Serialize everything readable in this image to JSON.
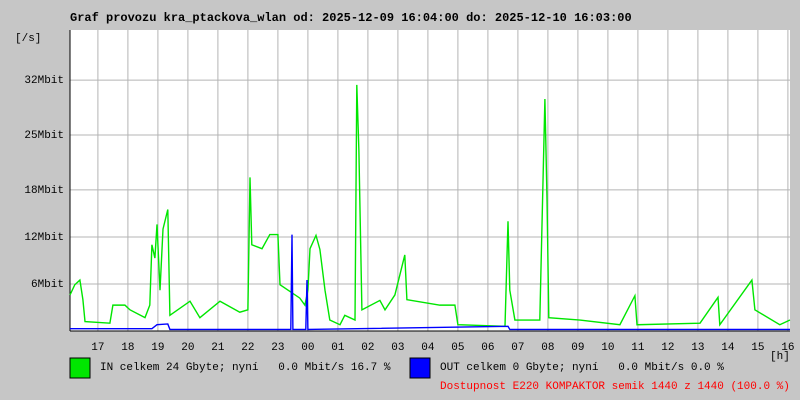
{
  "chart_data": {
    "type": "line",
    "title": "Graf provozu kra_ptackova_wlan od: 2025-12-09 16:04:00 do: 2025-12-10 16:03:00",
    "y_unit": "[/s]",
    "x_unit": "[h]",
    "xlim": [
      16.07,
      40.07
    ],
    "xticks": [
      17,
      18,
      19,
      20,
      21,
      22,
      23,
      {
        "value": 24,
        "label": "00"
      },
      {
        "value": 25,
        "label": "01"
      },
      {
        "value": 26,
        "label": "02"
      },
      {
        "value": 27,
        "label": "03"
      },
      {
        "value": 28,
        "label": "04"
      },
      {
        "value": 29,
        "label": "05"
      },
      {
        "value": 30,
        "label": "06"
      },
      {
        "value": 31,
        "label": "07"
      },
      {
        "value": 32,
        "label": "08"
      },
      {
        "value": 33,
        "label": "09"
      },
      {
        "value": 34,
        "label": "10"
      },
      {
        "value": 35,
        "label": "11"
      },
      {
        "value": 36,
        "label": "12"
      },
      {
        "value": 37,
        "label": "13"
      },
      {
        "value": 38,
        "label": "14"
      },
      {
        "value": 39,
        "label": "15"
      },
      {
        "value": 40,
        "label": "16"
      }
    ],
    "ylim": [
      0,
      38.4
    ],
    "yticks": [
      {
        "value": 6,
        "label": "6Mbit"
      },
      {
        "value": 12,
        "label": "12Mbit"
      },
      {
        "value": 18,
        "label": "18Mbit"
      },
      {
        "value": 25,
        "label": "25Mbit"
      },
      {
        "value": 32,
        "label": "32Mbit"
      }
    ],
    "grid": true,
    "series": [
      {
        "name": "IN celkem 24 Gbyte; nyní   0.0 Mbit/s 16.7 %",
        "color": "#00e600",
        "x": [
          16.07,
          16.23,
          16.4,
          16.5,
          16.57,
          17.4,
          17.5,
          17.9,
          18.07,
          18.57,
          18.73,
          18.8,
          18.9,
          18.97,
          19.07,
          19.17,
          19.33,
          19.4,
          20.07,
          20.4,
          21.07,
          21.73,
          22.0,
          22.07,
          22.13,
          22.47,
          22.73,
          23.0,
          23.07,
          23.73,
          23.9,
          24.0,
          24.07,
          24.27,
          24.4,
          24.57,
          24.73,
          25.07,
          25.23,
          25.57,
          25.63,
          25.7,
          25.8,
          26.4,
          26.57,
          26.9,
          27.23,
          27.3,
          28.4,
          28.9,
          29.0,
          30.57,
          30.67,
          30.73,
          30.9,
          31.73,
          31.9,
          31.97,
          32.03,
          33.07,
          34.4,
          34.9,
          34.97,
          37.07,
          37.67,
          37.73,
          38.8,
          38.9,
          39.73,
          40.07
        ],
        "values": [
          4.6,
          5.9,
          6.5,
          4.0,
          1.2,
          1.0,
          3.3,
          3.3,
          2.7,
          1.7,
          3.3,
          11.0,
          9.3,
          13.6,
          5.2,
          13.0,
          15.5,
          2.0,
          3.8,
          1.7,
          3.8,
          2.4,
          2.7,
          19.6,
          11.0,
          10.5,
          12.3,
          12.3,
          5.9,
          4.2,
          3.3,
          5.2,
          10.5,
          12.2,
          10.4,
          5.2,
          1.4,
          0.8,
          2.0,
          1.4,
          31.4,
          23.0,
          2.7,
          3.9,
          2.7,
          4.6,
          9.7,
          4.0,
          3.3,
          3.3,
          0.8,
          0.6,
          14.0,
          5.2,
          1.4,
          1.4,
          29.6,
          16.9,
          1.7,
          1.4,
          0.8,
          4.5,
          0.8,
          1.0,
          4.3,
          0.8,
          6.5,
          2.7,
          0.8,
          1.4
        ]
      },
      {
        "name": "OUT celkem 0 Gbyte; nyní   0.0 Mbit/s 0.0 %",
        "color": "#0000ff",
        "x": [
          16.07,
          18.8,
          18.97,
          19.33,
          19.4,
          23.43,
          23.47,
          23.5,
          23.93,
          23.97,
          24.0,
          30.67,
          30.73,
          40.07
        ],
        "values": [
          0.3,
          0.3,
          0.8,
          0.9,
          0.2,
          0.2,
          12.3,
          0.2,
          0.2,
          6.5,
          0.2,
          0.6,
          0.2,
          0.2
        ]
      }
    ],
    "availability": "Dostupnost E220 KOMPAKTOR semik 1440 z 1440 (100.0 %)"
  }
}
